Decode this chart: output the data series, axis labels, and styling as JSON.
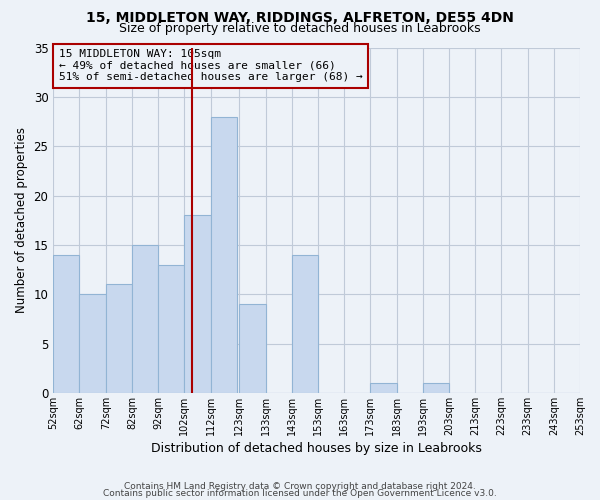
{
  "title1": "15, MIDDLETON WAY, RIDDINGS, ALFRETON, DE55 4DN",
  "title2": "Size of property relative to detached houses in Leabrooks",
  "xlabel": "Distribution of detached houses by size in Leabrooks",
  "ylabel": "Number of detached properties",
  "bin_edges": [
    52,
    62,
    72,
    82,
    92,
    102,
    112,
    123,
    133,
    143,
    153,
    163,
    173,
    183,
    193,
    203,
    213,
    223,
    233,
    243,
    253
  ],
  "bin_labels": [
    "52sqm",
    "62sqm",
    "72sqm",
    "82sqm",
    "92sqm",
    "102sqm",
    "112sqm",
    "123sqm",
    "133sqm",
    "143sqm",
    "153sqm",
    "163sqm",
    "173sqm",
    "183sqm",
    "193sqm",
    "203sqm",
    "213sqm",
    "223sqm",
    "233sqm",
    "243sqm",
    "253sqm"
  ],
  "bar_heights": [
    14,
    10,
    11,
    15,
    13,
    18,
    28,
    9,
    0,
    14,
    0,
    0,
    1,
    0,
    1,
    0,
    0,
    0,
    0,
    0
  ],
  "bar_color": "#c8d8ee",
  "bar_edgecolor": "#92b4d4",
  "grid_color": "#c0cad8",
  "background_color": "#edf2f8",
  "vline_x": 105,
  "vline_color": "#aa0000",
  "ylim": [
    0,
    35
  ],
  "yticks": [
    0,
    5,
    10,
    15,
    20,
    25,
    30,
    35
  ],
  "annotation_title": "15 MIDDLETON WAY: 105sqm",
  "annotation_line1": "← 49% of detached houses are smaller (66)",
  "annotation_line2": "51% of semi-detached houses are larger (68) →",
  "annotation_box_edgecolor": "#aa0000",
  "footer1": "Contains HM Land Registry data © Crown copyright and database right 2024.",
  "footer2": "Contains public sector information licensed under the Open Government Licence v3.0."
}
